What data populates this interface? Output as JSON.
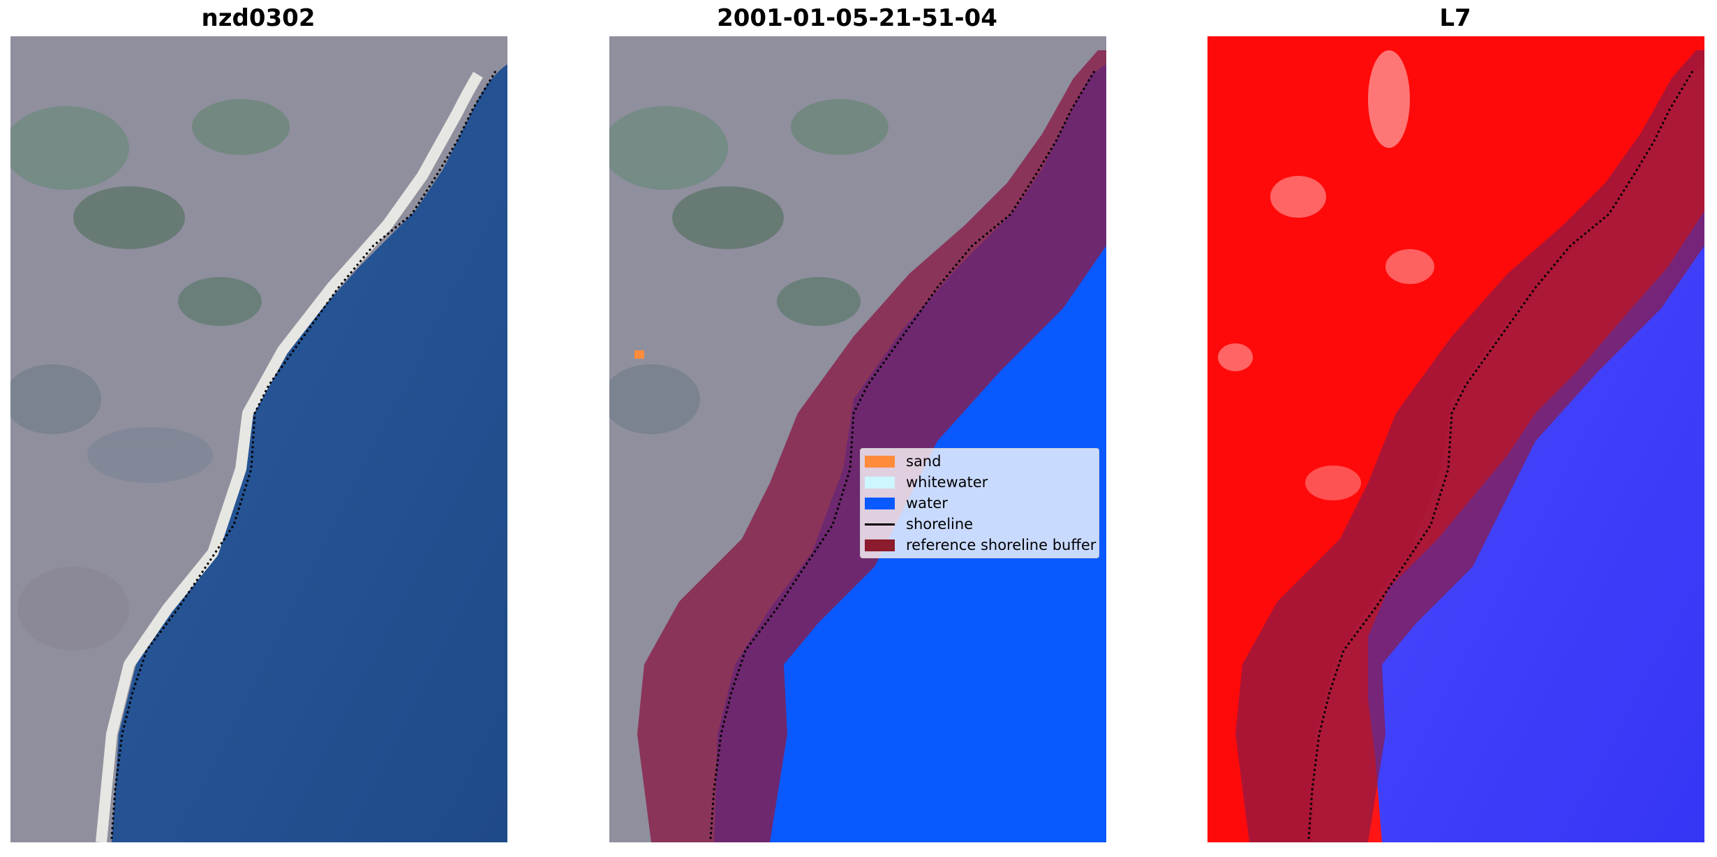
{
  "panels": [
    {
      "title": "nzd0302",
      "type": "rgb-image"
    },
    {
      "title": "2001-01-05-21-51-04",
      "type": "classified-image"
    },
    {
      "title": "L7",
      "type": "index-image"
    }
  ],
  "legend": {
    "items": [
      {
        "label": "sand",
        "color": "#ff8c3a",
        "kind": "patch"
      },
      {
        "label": "whitewater",
        "color": "#cdf6ff",
        "kind": "patch"
      },
      {
        "label": "water",
        "color": "#0a59ff",
        "kind": "patch"
      },
      {
        "label": "shoreline",
        "color": "#000000",
        "kind": "line"
      },
      {
        "label": "reference shoreline buffer",
        "color": "#8b1b2d",
        "kind": "patch"
      }
    ]
  },
  "colors": {
    "land": "#8f8f9e",
    "vegetation": "#5e7a6e",
    "sea_rgb": "#224d8e",
    "beach": "#d8d8d4",
    "water_class": "#0a59ff",
    "buffer_overlay": "#8b1b46",
    "index_high": "#ff0a0a",
    "index_low": "#3a3aff"
  }
}
